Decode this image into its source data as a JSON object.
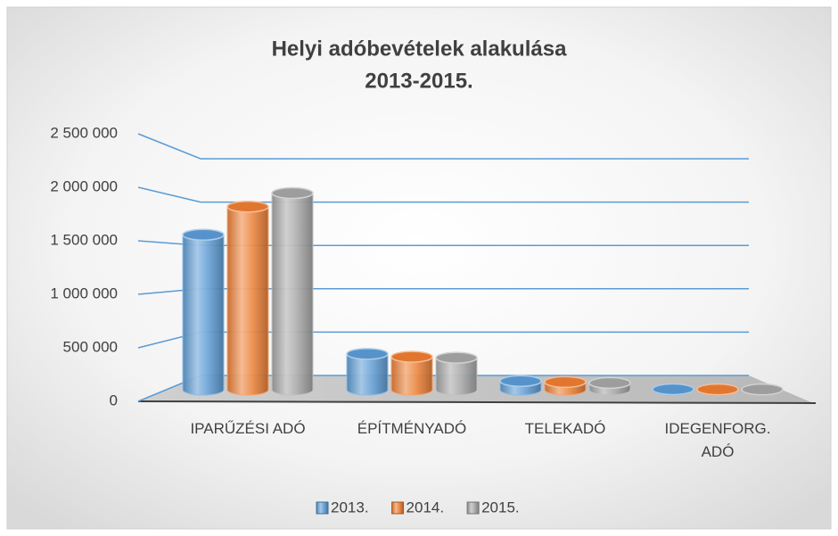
{
  "chart_data": {
    "type": "bar3d",
    "title": [
      "Helyi adóbevételek alakulása",
      "2013-2015."
    ],
    "categories": [
      "IPARŰZÉSI ADÓ",
      "ÉPÍTMÉNYADÓ",
      "TELEKADÓ",
      "IDEGENFORG. ADÓ"
    ],
    "series": [
      {
        "name": "2013.",
        "color": "#5b9bd5",
        "values": [
          1600000,
          370000,
          90000,
          5000
        ]
      },
      {
        "name": "2014.",
        "color": "#ed7d31",
        "values": [
          1890000,
          340000,
          80000,
          4000
        ]
      },
      {
        "name": "2015.",
        "color": "#a5a5a5",
        "values": [
          2030000,
          330000,
          70000,
          3000
        ]
      }
    ],
    "ylim": [
      0,
      2500000
    ],
    "yticks": [
      0,
      {
        "value": 500000,
        "label": "500 000"
      },
      {
        "value": 1000000,
        "label": "1 000 000"
      },
      {
        "value": 1500000,
        "label": "1 500 000"
      },
      {
        "value": 2000000,
        "label": "2 000 000"
      },
      {
        "value": 2500000,
        "label": "2 500 000"
      }
    ],
    "grid": true,
    "legend": "bottom"
  }
}
